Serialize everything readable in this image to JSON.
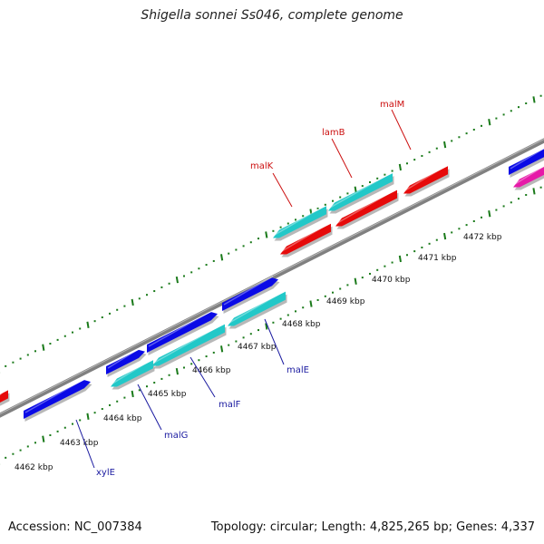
{
  "title": "Shigella sonnei Ss046, complete genome",
  "accession": "Accession: NC_007384",
  "topology": "Topology: circular; Length: 4,825,265 bp; Genes: 4,337",
  "colors": {
    "forward": "#0a0ae6",
    "reverse_cyan": "#22c8c8",
    "reverse_red": "#e60a0a",
    "pink": "#e61aa8",
    "backbone": "#808080",
    "tick": "#1a7a1a",
    "label_forward": "#1a1aa0",
    "label_reverse": "#cc1010"
  },
  "axis_ticks": [
    {
      "label": "4462 kbp"
    },
    {
      "label": "4463 kbp"
    },
    {
      "label": "4464 kbp"
    },
    {
      "label": "4465 kbp"
    },
    {
      "label": "4466 kbp"
    },
    {
      "label": "4467 kbp"
    },
    {
      "label": "4468 kbp"
    },
    {
      "label": "4469 kbp"
    },
    {
      "label": "4470 kbp"
    },
    {
      "label": "4471 kbp"
    },
    {
      "label": "4472 kbp"
    }
  ],
  "gene_labels": [
    {
      "name": "xylE",
      "strand": "forward"
    },
    {
      "name": "malG",
      "strand": "forward"
    },
    {
      "name": "malF",
      "strand": "forward"
    },
    {
      "name": "malE",
      "strand": "forward"
    },
    {
      "name": "malK",
      "strand": "reverse"
    },
    {
      "name": "lamB",
      "strand": "reverse"
    },
    {
      "name": "malM",
      "strand": "reverse"
    }
  ]
}
